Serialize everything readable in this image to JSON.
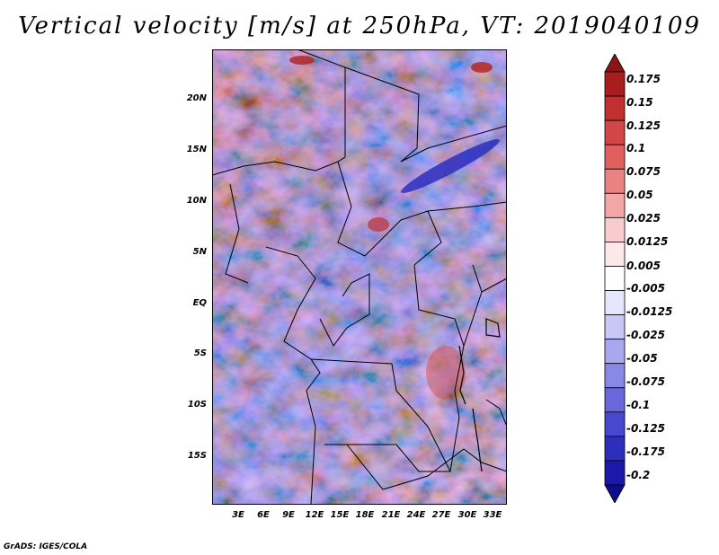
{
  "title": "Vertical velocity [m/s] at 250hPa, VT: 2019040109",
  "credit": "GrADS: IGES/COLA",
  "map": {
    "lat_ticks": [
      "20N",
      "15N",
      "10N",
      "5N",
      "EQ",
      "5S",
      "10S",
      "15S"
    ],
    "lon_ticks": [
      "3E",
      "6E",
      "9E",
      "12E",
      "15E",
      "18E",
      "21E",
      "24E",
      "27E",
      "30E",
      "33E"
    ]
  },
  "colorbar": {
    "labels": [
      "0.175",
      "0.15",
      "0.125",
      "0.1",
      "0.075",
      "0.05",
      "0.025",
      "0.0125",
      "0.005",
      "-0.005",
      "-0.0125",
      "-0.025",
      "-0.05",
      "-0.075",
      "-0.1",
      "-0.125",
      "-0.175",
      "-0.2"
    ],
    "colors": [
      "#8b1414",
      "#a81e1e",
      "#c03030",
      "#d24646",
      "#e06060",
      "#ea8282",
      "#f2a6a6",
      "#f8cccc",
      "#fce8e8",
      "#ffffff",
      "#e6e6fc",
      "#c8c8f6",
      "#a8a8ee",
      "#8888e6",
      "#6868dc",
      "#4848ce",
      "#2e2ebc",
      "#1a1aa6",
      "#0c0c8c"
    ]
  }
}
